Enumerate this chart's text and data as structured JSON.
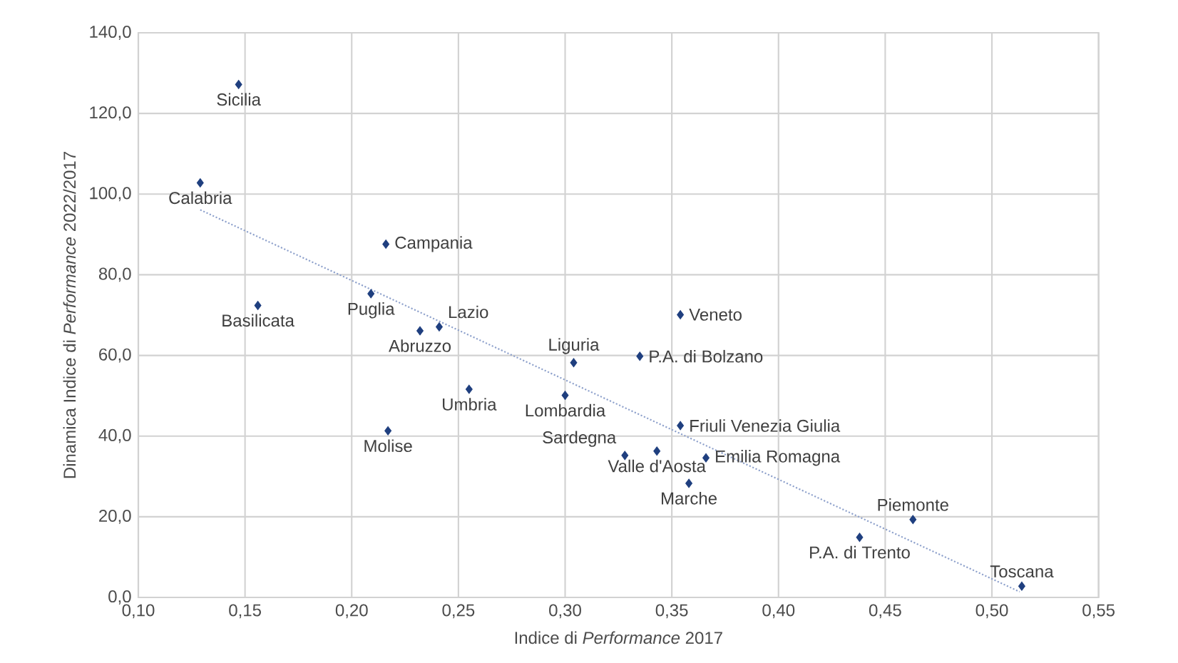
{
  "chart_data": {
    "type": "scatter",
    "xlabel": "Indice di *Performance* 2017",
    "ylabel": "Dinamica Indice di *Performance* 2022/2017",
    "xlim": [
      0.1,
      0.55
    ],
    "ylim": [
      0,
      140
    ],
    "xticks": [
      {
        "value": 0.1,
        "label": "0,10"
      },
      {
        "value": 0.15,
        "label": "0,15"
      },
      {
        "value": 0.2,
        "label": "0,20"
      },
      {
        "value": 0.25,
        "label": "0,25"
      },
      {
        "value": 0.3,
        "label": "0,30"
      },
      {
        "value": 0.35,
        "label": "0,35"
      },
      {
        "value": 0.4,
        "label": "0,40"
      },
      {
        "value": 0.45,
        "label": "0,45"
      },
      {
        "value": 0.5,
        "label": "0,50"
      },
      {
        "value": 0.55,
        "label": "0,55"
      }
    ],
    "yticks": [
      {
        "value": 0,
        "label": "0,0"
      },
      {
        "value": 20,
        "label": "20,0"
      },
      {
        "value": 40,
        "label": "40,0"
      },
      {
        "value": 60,
        "label": "60,0"
      },
      {
        "value": 80,
        "label": "80,0"
      },
      {
        "value": 100,
        "label": "100,0"
      },
      {
        "value": 120,
        "label": "120,0"
      },
      {
        "value": 140,
        "label": "140,0"
      }
    ],
    "grid": true,
    "series": [
      {
        "color": "#1f3f7f",
        "marker": "diamond",
        "x": [
          0.147,
          0.129,
          0.216,
          0.209,
          0.156,
          0.232,
          0.241,
          0.255,
          0.217,
          0.304,
          0.3,
          0.335,
          0.354,
          0.354,
          0.328,
          0.343,
          0.366,
          0.358,
          0.463,
          0.438,
          0.514
        ],
        "values": [
          127.2,
          102.8,
          87.6,
          75.3,
          72.4,
          66.1,
          67.1,
          51.6,
          41.3,
          58.2,
          50.1,
          59.8,
          70.1,
          42.6,
          35.2,
          36.3,
          34.6,
          28.3,
          19.3,
          14.9,
          2.8
        ]
      },
      {
        "type": "line",
        "color": "#8da0cb",
        "line_style": "dotted",
        "x": [
          0.129,
          0.513
        ],
        "values": [
          96.1,
          1.4
        ]
      }
    ],
    "annotations": [
      {
        "text": "Sicilia",
        "x": 0.147,
        "y": 127.2
      },
      {
        "text": "Calabria",
        "x": 0.129,
        "y": 102.8
      },
      {
        "text": "Campania",
        "x": 0.216,
        "y": 87.6
      },
      {
        "text": "Puglia",
        "x": 0.209,
        "y": 75.3
      },
      {
        "text": "Basilicata",
        "x": 0.156,
        "y": 72.4
      },
      {
        "text": "Abruzzo",
        "x": 0.232,
        "y": 66.1
      },
      {
        "text": "Lazio",
        "x": 0.241,
        "y": 67.1
      },
      {
        "text": "Umbria",
        "x": 0.255,
        "y": 51.6
      },
      {
        "text": "Molise",
        "x": 0.217,
        "y": 41.3
      },
      {
        "text": "Liguria",
        "x": 0.304,
        "y": 58.2
      },
      {
        "text": "Lombardia",
        "x": 0.3,
        "y": 50.1
      },
      {
        "text": "P.A. di Bolzano",
        "x": 0.335,
        "y": 59.8
      },
      {
        "text": "Veneto",
        "x": 0.354,
        "y": 70.1
      },
      {
        "text": "Friuli Venezia Giulia",
        "x": 0.354,
        "y": 42.6
      },
      {
        "text": "Sardegna",
        "x": 0.328,
        "y": 35.2
      },
      {
        "text": "Valle d'Aosta",
        "x": 0.343,
        "y": 36.3
      },
      {
        "text": "Emilia Romagna",
        "x": 0.366,
        "y": 34.6
      },
      {
        "text": "Marche",
        "x": 0.358,
        "y": 28.3
      },
      {
        "text": "Piemonte",
        "x": 0.463,
        "y": 19.3
      },
      {
        "text": "P.A. di Trento",
        "x": 0.438,
        "y": 14.9
      },
      {
        "text": "Toscana",
        "x": 0.514,
        "y": 2.8
      }
    ]
  }
}
